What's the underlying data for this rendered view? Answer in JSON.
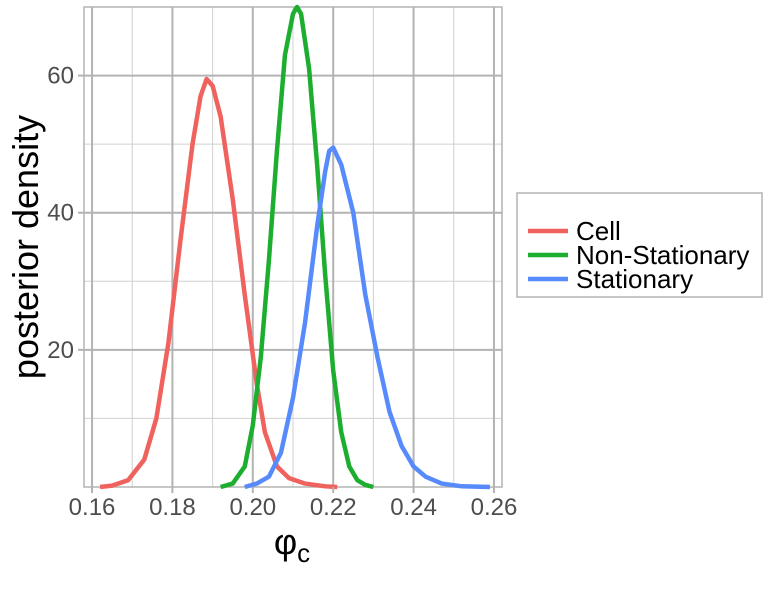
{
  "chart_data": {
    "type": "line",
    "title": "",
    "xlabel": "φ",
    "xlabel_subscript": "c",
    "ylabel": "posterior density",
    "xlim": [
      0.158,
      0.262
    ],
    "ylim": [
      0,
      70
    ],
    "x_ticks": [
      0.16,
      0.18,
      0.2,
      0.22,
      0.24,
      0.26
    ],
    "x_tick_labels": [
      "0.16",
      "0.18",
      "0.20",
      "0.22",
      "0.24",
      "0.26"
    ],
    "y_ticks": [
      20,
      40,
      60
    ],
    "y_tick_labels": [
      "20",
      "40",
      "60"
    ],
    "grid": true,
    "legend": {
      "position": "right",
      "entries": [
        "Cell",
        "Non-Stationary",
        "Stationary"
      ]
    },
    "series": [
      {
        "name": "Cell",
        "color": "#F0625D",
        "x": [
          0.162,
          0.165,
          0.169,
          0.173,
          0.176,
          0.179,
          0.182,
          0.185,
          0.187,
          0.1885,
          0.19,
          0.192,
          0.195,
          0.198,
          0.201,
          0.203,
          0.206,
          0.209,
          0.213,
          0.218,
          0.221
        ],
        "y": [
          0,
          0.2,
          1,
          4,
          10,
          21,
          36,
          50,
          57,
          59.5,
          58.5,
          54,
          42,
          28,
          15,
          8,
          3,
          1.3,
          0.5,
          0.1,
          0
        ]
      },
      {
        "name": "Non-Stationary",
        "color": "#1DAE30",
        "x": [
          0.192,
          0.195,
          0.198,
          0.2,
          0.202,
          0.204,
          0.206,
          0.208,
          0.21,
          0.211,
          0.212,
          0.214,
          0.216,
          0.218,
          0.22,
          0.222,
          0.224,
          0.226,
          0.228,
          0.23
        ],
        "y": [
          0,
          0.5,
          3,
          9,
          19,
          33,
          49,
          63,
          69,
          70,
          69,
          61,
          47,
          31,
          17,
          8,
          3,
          1,
          0.3,
          0
        ]
      },
      {
        "name": "Stationary",
        "color": "#578BFC",
        "x": [
          0.198,
          0.201,
          0.204,
          0.207,
          0.21,
          0.213,
          0.216,
          0.218,
          0.219,
          0.22,
          0.222,
          0.225,
          0.228,
          0.231,
          0.234,
          0.237,
          0.24,
          0.243,
          0.247,
          0.252,
          0.259
        ],
        "y": [
          0,
          0.5,
          1.5,
          5,
          13,
          24,
          38,
          46,
          49,
          49.5,
          47,
          40,
          28,
          19,
          11,
          6,
          3,
          1.5,
          0.5,
          0.1,
          0
        ]
      }
    ]
  }
}
